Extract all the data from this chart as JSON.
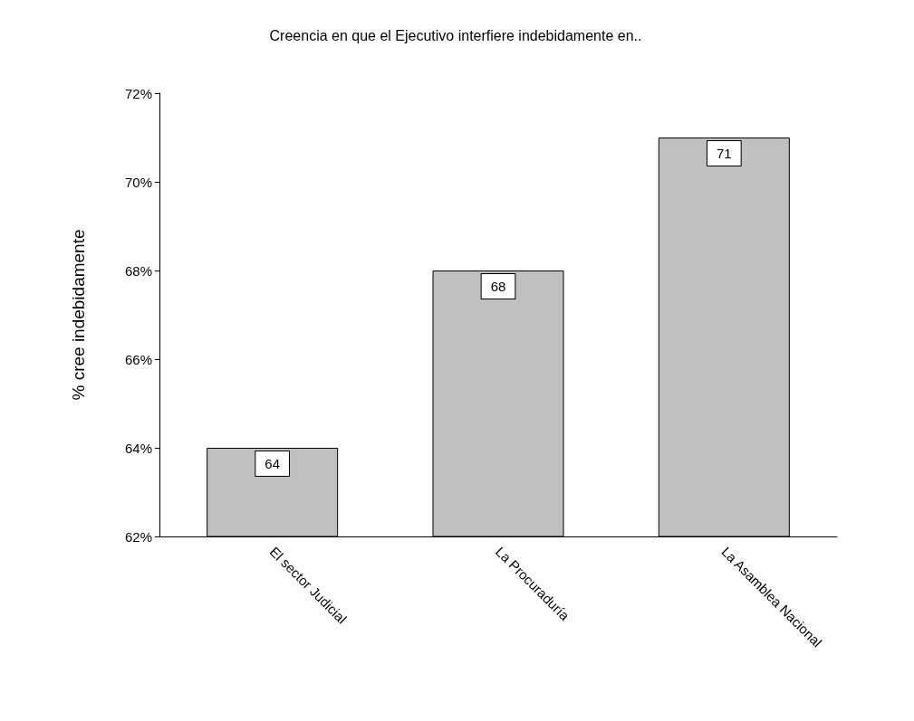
{
  "chart_data": {
    "type": "bar",
    "title": "Creencia en que el Ejecutivo interfiere indebidamente en..",
    "ylabel": "% cree indebidamente",
    "categories": [
      "El sector Judicial",
      "La Procuraduría",
      "La Asamblea Nacional"
    ],
    "values": [
      64,
      68,
      71
    ],
    "color": "#c0c0c0",
    "data_labels": true,
    "ylim": [
      62,
      72
    ],
    "yticks": [
      {
        "value": 62,
        "label": "62%"
      },
      {
        "value": 64,
        "label": "64%"
      },
      {
        "value": 66,
        "label": "66%"
      },
      {
        "value": 68,
        "label": "68%"
      },
      {
        "value": 70,
        "label": "70%"
      },
      {
        "value": 72,
        "label": "72%"
      }
    ],
    "grid": false
  }
}
